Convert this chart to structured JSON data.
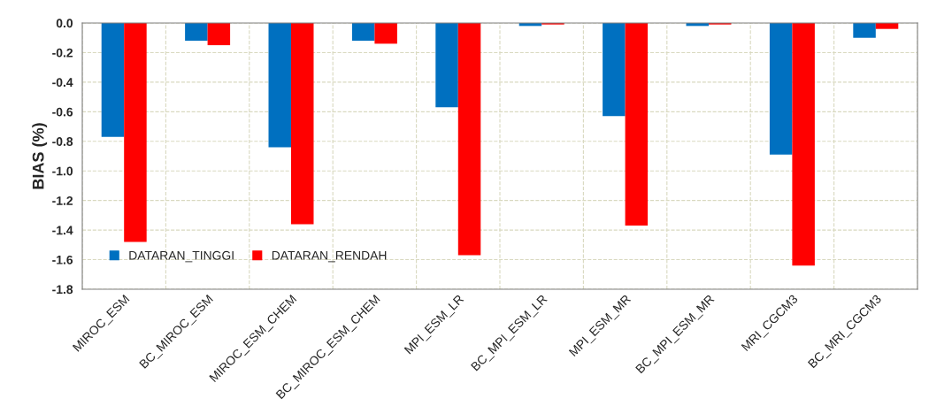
{
  "chart_data": {
    "type": "bar",
    "ylabel": "BIAS (%)",
    "categories": [
      "MIROC_ESM",
      "BC_MIROC_ESM",
      "MIROC_ESM_CHEM",
      "BC_MIROC_ESM_CHEM",
      "MPI_ESM_LR",
      "BC_MPI_ESM_LR",
      "MPI_ESM_MR",
      "BC_MPI_ESM_MR",
      "MRI_CGCM3",
      "BC_MRI_CGCM3"
    ],
    "series": [
      {
        "name": "DATARAN_TINGGI",
        "color": "#0070c0",
        "values": [
          -0.77,
          -0.12,
          -0.84,
          -0.12,
          -0.57,
          -0.02,
          -0.63,
          -0.02,
          -0.89,
          -0.1
        ]
      },
      {
        "name": "DATARAN_RENDAH",
        "color": "#ff0000",
        "values": [
          -1.48,
          -0.15,
          -1.36,
          -0.14,
          -1.57,
          -0.01,
          -1.37,
          -0.01,
          -1.64,
          -0.04
        ]
      }
    ],
    "ylim": [
      -1.8,
      0.0
    ],
    "yticks": [
      {
        "value": -1.8,
        "label": "-1.8"
      },
      {
        "value": -1.6,
        "label": "-1.6"
      },
      {
        "value": -1.4,
        "label": "-1.4"
      },
      {
        "value": -1.2,
        "label": "-1.2"
      },
      {
        "value": -1.0,
        "label": "-1.0"
      },
      {
        "value": -0.8,
        "label": "-0.8"
      },
      {
        "value": -0.6,
        "label": "-0.6"
      },
      {
        "value": -0.4,
        "label": "-0.4"
      },
      {
        "value": -0.2,
        "label": "-0.2"
      },
      {
        "value": 0.0,
        "label": "0.0"
      }
    ],
    "grid": true,
    "legend": "bottom left"
  }
}
